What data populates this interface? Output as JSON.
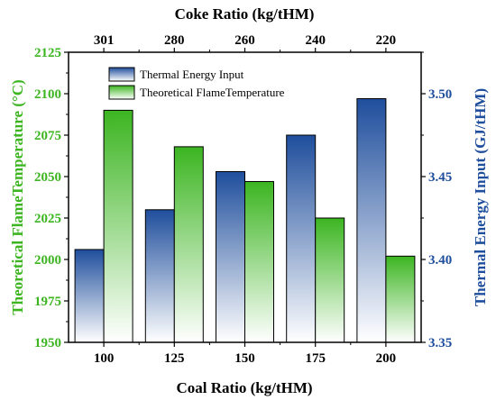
{
  "chart_data": {
    "type": "bar",
    "categories": [
      "100",
      "125",
      "150",
      "175",
      "200"
    ],
    "top_categories": [
      "301",
      "280",
      "260",
      "240",
      "220"
    ],
    "xlabel": "Coal Ratio (kg/tHM)",
    "x2label": "Coke Ratio (kg/tHM)",
    "ylabel": "Theoretical FlameTemperature (°C)",
    "y2label": "Thermal Energy Input (GJ/tHM)",
    "ylim": [
      1950,
      2125
    ],
    "y_ticks": [
      1950,
      1975,
      2000,
      2025,
      2050,
      2075,
      2100,
      2125
    ],
    "y2lim": [
      3.35,
      3.525
    ],
    "y2_ticks": [
      "3.35",
      "3.40",
      "3.45",
      "3.50"
    ],
    "legend_position": "top-left",
    "series": [
      {
        "name": "Thermal Energy Input",
        "axis": "right",
        "color": "#1f4e9c",
        "values": [
          3.406,
          3.43,
          3.453,
          3.475,
          3.497
        ]
      },
      {
        "name": "Theoretical FlameTemperature",
        "axis": "left",
        "color": "#3cb521",
        "values": [
          2090,
          2068,
          2047,
          2025,
          2002
        ]
      }
    ],
    "colors": {
      "left_axis": "#3cb521",
      "right_axis": "#1f4e9c"
    }
  }
}
